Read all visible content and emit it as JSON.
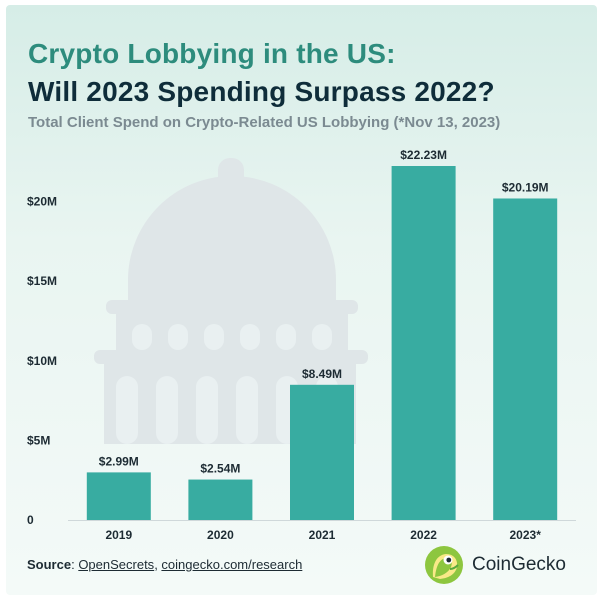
{
  "title_line1": "Crypto Lobbying in the US:",
  "title_line2": "Will 2023 Spending Surpass 2022?",
  "subtitle": "Total Client Spend on Crypto-Related US Lobbying (*Nov 13, 2023)",
  "footer": {
    "source_label": "Source",
    "separator": ": ",
    "link1": "OpenSecrets",
    "comma": ", ",
    "link2": "coingecko.com/research"
  },
  "brand": {
    "name": "CoinGecko"
  },
  "colors": {
    "bar": "#38aca1",
    "accent": "#2d8c7d",
    "dark": "#0f2d3a",
    "capitol": "#dfe6e8"
  },
  "chart_data": {
    "type": "bar",
    "categories": [
      "2019",
      "2020",
      "2021",
      "2022",
      "2023*"
    ],
    "values": [
      2.99,
      2.54,
      8.49,
      22.23,
      20.19
    ],
    "data_labels": [
      "$2.99M",
      "$2.54M",
      "$8.49M",
      "$22.23M",
      "$20.19M"
    ],
    "y_ticks": [
      0,
      5,
      10,
      15,
      20
    ],
    "y_tick_labels": [
      "0",
      "$5M",
      "$10M",
      "$15M",
      "$20M"
    ],
    "ylim": [
      0,
      22.23
    ],
    "grid": false,
    "legend": "none"
  }
}
